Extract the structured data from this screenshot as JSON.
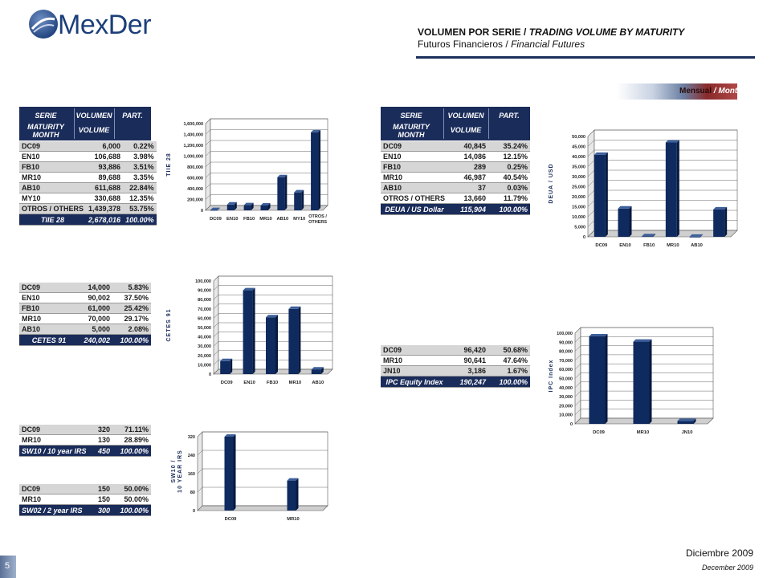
{
  "header": {
    "logo_text": "MexDer",
    "title_es": "VOLUMEN POR SERIE /",
    "title_en": "TRADING VOLUME BY MATURITY",
    "subtitle_es": "Futuros Financieros /",
    "subtitle_en": "Financial Futures",
    "badge_es": "Mensual",
    "badge_sep": "/",
    "badge_en": "Monthly"
  },
  "table_head": {
    "serie": "SERIE",
    "maturity": "MATURITY MONTH",
    "volumen": "VOLUMEN",
    "volume": "VOLUME",
    "part": "PART."
  },
  "tables": {
    "tiie": {
      "rows": [
        {
          "s": "DC09",
          "v": "6,000",
          "p": "0.22%"
        },
        {
          "s": "EN10",
          "v": "106,688",
          "p": "3.98%"
        },
        {
          "s": "FB10",
          "v": "93,886",
          "p": "3.51%"
        },
        {
          "s": "MR10",
          "v": "89,688",
          "p": "3.35%"
        },
        {
          "s": "AB10",
          "v": "611,688",
          "p": "22.84%"
        },
        {
          "s": "MY10",
          "v": "330,688",
          "p": "12.35%"
        },
        {
          "s": "OTROS / OTHERS",
          "v": "1,439,378",
          "p": "53.75%"
        }
      ],
      "total": {
        "s": "TIIE 28",
        "v": "2,678,016",
        "p": "100.00%"
      }
    },
    "deua": {
      "rows": [
        {
          "s": "DC09",
          "v": "40,845",
          "p": "35.24%"
        },
        {
          "s": "EN10",
          "v": "14,086",
          "p": "12.15%"
        },
        {
          "s": "FB10",
          "v": "289",
          "p": "0.25%"
        },
        {
          "s": "MR10",
          "v": "46,987",
          "p": "40.54%"
        },
        {
          "s": "AB10",
          "v": "37",
          "p": "0.03%"
        },
        {
          "s": "OTROS / OTHERS",
          "v": "13,660",
          "p": "11.79%"
        }
      ],
      "total": {
        "s": "DEUA / US Dollar",
        "v": "115,904",
        "p": "100.00%"
      }
    },
    "cetes": {
      "rows": [
        {
          "s": "DC09",
          "v": "14,000",
          "p": "5.83%"
        },
        {
          "s": "EN10",
          "v": "90,002",
          "p": "37.50%"
        },
        {
          "s": "FB10",
          "v": "61,000",
          "p": "25.42%"
        },
        {
          "s": "MR10",
          "v": "70,000",
          "p": "29.17%"
        },
        {
          "s": "AB10",
          "v": "5,000",
          "p": "2.08%"
        }
      ],
      "total": {
        "s": "CETES 91",
        "v": "240,002",
        "p": "100.00%"
      }
    },
    "ipc": {
      "rows": [
        {
          "s": "DC09",
          "v": "96,420",
          "p": "50.68%"
        },
        {
          "s": "MR10",
          "v": "90,641",
          "p": "47.64%"
        },
        {
          "s": "JN10",
          "v": "3,186",
          "p": "1.67%"
        }
      ],
      "total": {
        "s": "IPC Equity Index",
        "v": "190,247",
        "p": "100.00%"
      }
    },
    "sw10": {
      "rows": [
        {
          "s": "DC09",
          "v": "320",
          "p": "71.11%"
        },
        {
          "s": "MR10",
          "v": "130",
          "p": "28.89%"
        }
      ],
      "total": {
        "s": "SW10 / 10 year IRS",
        "v": "450",
        "p": "100.00%"
      }
    },
    "sw02": {
      "rows": [
        {
          "s": "DC09",
          "v": "150",
          "p": "50.00%"
        },
        {
          "s": "MR10",
          "v": "150",
          "p": "50.00%"
        }
      ],
      "total": {
        "s": "SW02 / 2 year IRS",
        "v": "300",
        "p": "100.00%"
      }
    }
  },
  "chart_data": [
    {
      "type": "bar",
      "key": "tiie",
      "ylabel": "TIIE 28",
      "categories": [
        "DC09",
        "EN10",
        "FB10",
        "MR10",
        "AB10",
        "MY10",
        "OTROS / OTHERS"
      ],
      "values": [
        6000,
        106688,
        93886,
        89688,
        611688,
        330688,
        1439378
      ],
      "ylim": [
        0,
        1600000
      ],
      "ticks": [
        "0",
        "200,000",
        "400,000",
        "600,000",
        "800,000",
        "1,000,000",
        "1,200,000",
        "1,400,000",
        "1,600,000"
      ],
      "grid": true
    },
    {
      "type": "bar",
      "key": "deua",
      "ylabel": "DEUA / USD",
      "categories": [
        "DC09",
        "EN10",
        "FB10",
        "MR10",
        "AB10",
        ""
      ],
      "values": [
        40845,
        14086,
        289,
        46987,
        37,
        13660
      ],
      "ylim": [
        0,
        50000
      ],
      "ticks": [
        "0",
        "5,000",
        "10,000",
        "15,000",
        "20,000",
        "25,000",
        "30,000",
        "35,000",
        "40,000",
        "45,000",
        "50,000"
      ],
      "grid": true
    },
    {
      "type": "bar",
      "key": "cetes",
      "ylabel": "CETES 91",
      "categories": [
        "DC09",
        "EN10",
        "FB10",
        "MR10",
        "AB10"
      ],
      "values": [
        14000,
        90002,
        61000,
        70000,
        5000
      ],
      "ylim": [
        0,
        100000
      ],
      "ticks": [
        "0",
        "10,000",
        "20,000",
        "30,000",
        "40,000",
        "50,000",
        "60,000",
        "70,000",
        "80,000",
        "90,000",
        "100,000"
      ],
      "grid": true
    },
    {
      "type": "bar",
      "key": "ipc",
      "ylabel": "IPC Index",
      "categories": [
        "DC09",
        "MR10",
        "JN10"
      ],
      "values": [
        96420,
        90641,
        3186
      ],
      "ylim": [
        0,
        100000
      ],
      "ticks": [
        "0",
        "10,000",
        "20,000",
        "30,000",
        "40,000",
        "50,000",
        "60,000",
        "70,000",
        "80,000",
        "90,000",
        "100,000"
      ],
      "grid": true
    },
    {
      "type": "bar",
      "key": "sw10",
      "ylabel": "SW10 / 10 YEAR IRS",
      "categories": [
        "DC09",
        "MR10"
      ],
      "values": [
        320,
        130
      ],
      "ylim": [
        0,
        320
      ],
      "ticks": [
        "0",
        "80",
        "160",
        "240",
        "320"
      ],
      "grid": true
    }
  ],
  "footer": {
    "date_es": "Diciembre 2009",
    "date_en": "December 2009",
    "page": "5"
  },
  "colors": {
    "navy": "#1a2c5a",
    "bar": "#0f2a5e",
    "bar_top": "#3d5f9a",
    "bar_side": "#071a40"
  }
}
